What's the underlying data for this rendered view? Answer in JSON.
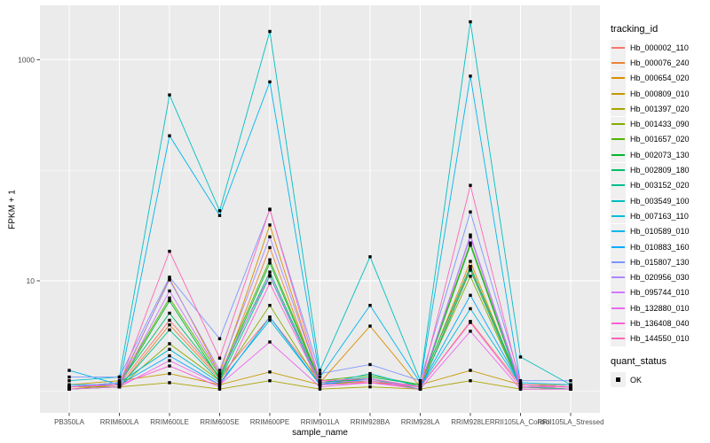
{
  "figure": {
    "background": "#FFFFFF",
    "panel_background": "#EBEBEB",
    "grid_color": "#FFFFFF",
    "tick_color": "#333333",
    "tick_label_color": "#4D4D4D",
    "axis_title_color": "#000000"
  },
  "chart_data": {
    "type": "line",
    "title": "",
    "xlabel": "sample_name",
    "ylabel": "FPKM + 1",
    "y_scale": "log10",
    "legend_title": "tracking_id",
    "legend_position": "right",
    "grid": true,
    "point_shape": "square",
    "point_color": "#000000",
    "y_major_ticks": [
      {
        "label": "1000",
        "value": 1000
      },
      {
        "label": "10",
        "value": 10
      }
    ],
    "y_minor_gridlines": [
      100,
      1
    ],
    "ylim": [
      0.64,
      3100
    ],
    "categories": [
      "PB350LA",
      "RRIM600LA",
      "RRIM600LE",
      "RRIM600SE",
      "RRIM600PE",
      "RRIM901LA",
      "RRIM928BA",
      "RRIM928LA",
      "RRIM928LE",
      "RRII105LA_Control",
      "RRII105LA_Stressed"
    ],
    "series": [
      {
        "name": "Hb_000002_110",
        "color": "#F8766D",
        "values": [
          1.1,
          1.15,
          4.4,
          1.35,
          4.7,
          1.25,
          1.2,
          1.1,
          4.3,
          1.15,
          1.1
        ]
      },
      {
        "name": "Hb_000076_240",
        "color": "#EB8335",
        "values": [
          1.05,
          1.1,
          4.0,
          1.3,
          20,
          1.15,
          1.25,
          1.05,
          13,
          1.1,
          1.05
        ]
      },
      {
        "name": "Hb_000654_020",
        "color": "#DB8E00",
        "values": [
          1.05,
          1.15,
          10.5,
          1.45,
          32,
          1.2,
          3.9,
          1.1,
          15,
          1.1,
          1.05
        ]
      },
      {
        "name": "Hb_000809_010",
        "color": "#C59900",
        "values": [
          1.15,
          1.25,
          1.45,
          1.15,
          1.5,
          1.15,
          1.2,
          1.15,
          1.55,
          1.15,
          1.15
        ]
      },
      {
        "name": "Hb_001397_020",
        "color": "#A9A400",
        "values": [
          1.05,
          1.1,
          1.2,
          1.05,
          1.25,
          1.05,
          1.1,
          1.05,
          1.25,
          1.05,
          1.05
        ]
      },
      {
        "name": "Hb_001433_090",
        "color": "#85AD00",
        "values": [
          1.1,
          1.1,
          2.7,
          1.25,
          6.0,
          1.15,
          1.25,
          1.1,
          11,
          1.1,
          1.05
        ]
      },
      {
        "name": "Hb_001657_020",
        "color": "#51B400",
        "values": [
          1.1,
          1.2,
          7.0,
          1.4,
          15.5,
          1.25,
          1.4,
          1.15,
          22,
          1.15,
          1.1
        ]
      },
      {
        "name": "Hb_002073_130",
        "color": "#00B92A",
        "values": [
          1.1,
          1.15,
          6.6,
          1.3,
          14.5,
          1.2,
          1.3,
          1.1,
          21,
          1.1,
          1.1
        ]
      },
      {
        "name": "Hb_002809_180",
        "color": "#00BE67",
        "values": [
          1.1,
          1.2,
          5.1,
          1.35,
          12,
          1.2,
          1.35,
          1.15,
          13.5,
          1.15,
          1.1
        ]
      },
      {
        "name": "Hb_003152_020",
        "color": "#00C08E",
        "values": [
          1.05,
          1.1,
          3.6,
          1.25,
          11,
          1.15,
          1.3,
          1.05,
          12.5,
          1.1,
          1.05
        ]
      },
      {
        "name": "Hb_003549_100",
        "color": "#00BFC0",
        "values": [
          1.25,
          1.35,
          480,
          43,
          1800,
          1.55,
          16.5,
          1.25,
          2200,
          2.05,
          1.15
        ]
      },
      {
        "name": "Hb_007163_110",
        "color": "#00BCD8",
        "values": [
          1.1,
          1.2,
          2.4,
          1.2,
          4.4,
          1.15,
          1.45,
          1.1,
          5.6,
          1.15,
          1.1
        ]
      },
      {
        "name": "Hb_010589_010",
        "color": "#00B5EC",
        "values": [
          1.55,
          1.15,
          205,
          39,
          630,
          1.35,
          6.0,
          1.2,
          710,
          1.2,
          1.15
        ]
      },
      {
        "name": "Hb_010883_160",
        "color": "#00A9FF",
        "values": [
          1.15,
          1.15,
          2.1,
          1.15,
          4.7,
          1.15,
          1.3,
          1.1,
          7.4,
          1.15,
          1.1
        ]
      },
      {
        "name": "Hb_015807_130",
        "color": "#7F96FF",
        "values": [
          1.35,
          1.35,
          10.8,
          3.0,
          44,
          1.45,
          1.75,
          1.25,
          42,
          1.25,
          1.25
        ]
      },
      {
        "name": "Hb_020956_030",
        "color": "#AC88FF",
        "values": [
          1.1,
          1.2,
          10.2,
          1.55,
          25,
          1.25,
          1.3,
          1.1,
          26,
          1.15,
          1.1
        ]
      },
      {
        "name": "Hb_095744_010",
        "color": "#D277FF",
        "values": [
          1.1,
          1.15,
          8.1,
          1.45,
          11.2,
          1.2,
          1.25,
          1.1,
          25,
          1.1,
          1.1
        ]
      },
      {
        "name": "Hb_132880_010",
        "color": "#EC69EF",
        "values": [
          1.05,
          1.1,
          1.9,
          1.15,
          2.8,
          1.1,
          1.2,
          1.05,
          3.5,
          1.05,
          1.05
        ]
      },
      {
        "name": "Hb_136408_040",
        "color": "#FC61D5",
        "values": [
          1.1,
          1.15,
          1.7,
          1.1,
          9.5,
          1.15,
          1.2,
          1.1,
          4.2,
          1.1,
          1.1
        ]
      },
      {
        "name": "Hb_144550_010",
        "color": "#FF65B8",
        "values": [
          1.1,
          1.15,
          18.5,
          2.0,
          44.5,
          1.25,
          1.3,
          1.1,
          73,
          1.15,
          1.1
        ]
      }
    ],
    "quant_status": {
      "title": "quant_status",
      "items": [
        {
          "label": "OK"
        }
      ]
    }
  }
}
